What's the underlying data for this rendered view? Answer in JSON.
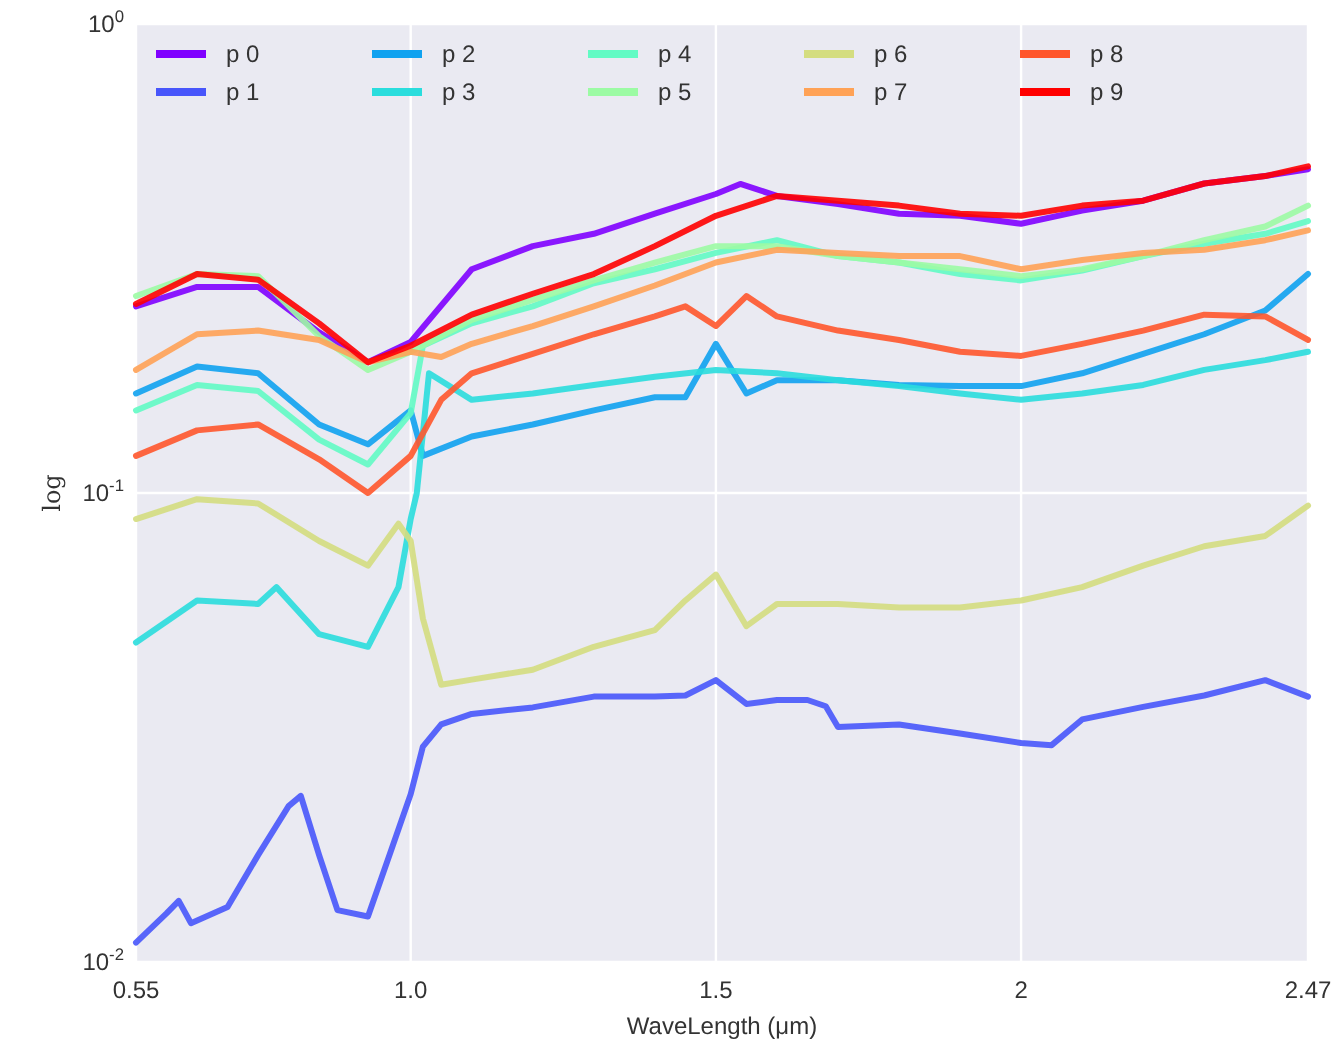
{
  "chart_data": {
    "type": "line",
    "xlabel": "WaveLength (μm)",
    "ylabel": "log",
    "log": "y",
    "grid": true,
    "legend": "top left",
    "line_style": "solid",
    "marker": "none",
    "xlim": [
      0.55,
      2.47
    ],
    "xticks": [
      {
        "value": 0.55,
        "label": "0.55"
      },
      {
        "value": 1,
        "label": "1.0"
      },
      1.5,
      2,
      2.47
    ],
    "ylim": [
      0.01,
      1
    ],
    "yticks": [
      {
        "value": 0.01,
        "label": "10$^{-2}$"
      },
      {
        "value": 0.1,
        "label": "10$^{-1}$"
      },
      {
        "value": 1,
        "label": "10$^{0}$"
      }
    ],
    "series": [
      {
        "name": "p 0",
        "color": "#8000ff",
        "x": [
          0.55,
          0.65,
          0.75,
          0.85,
          0.93,
          1.0,
          1.1,
          1.2,
          1.3,
          1.4,
          1.5,
          1.54,
          1.6,
          1.7,
          1.8,
          1.9,
          2.0,
          2.1,
          2.2,
          2.3,
          2.4,
          2.47
        ],
        "values": [
          0.25,
          0.275,
          0.275,
          0.22,
          0.19,
          0.21,
          0.3,
          0.336,
          0.357,
          0.394,
          0.434,
          0.456,
          0.43,
          0.413,
          0.394,
          0.39,
          0.375,
          0.4,
          0.42,
          0.457,
          0.474,
          0.49
        ]
      },
      {
        "name": "p 1",
        "color": "#4856fb",
        "x": [
          0.55,
          0.6,
          0.62,
          0.64,
          0.7,
          0.75,
          0.8,
          0.82,
          0.85,
          0.88,
          0.93,
          0.97,
          1.0,
          1.02,
          1.05,
          1.1,
          1.2,
          1.3,
          1.4,
          1.45,
          1.5,
          1.55,
          1.6,
          1.65,
          1.68,
          1.7,
          1.8,
          1.9,
          2.0,
          2.05,
          2.1,
          2.2,
          2.3,
          2.4,
          2.47
        ],
        "values": [
          0.011,
          0.0127,
          0.0135,
          0.0121,
          0.0131,
          0.0169,
          0.0215,
          0.0226,
          0.0169,
          0.0129,
          0.0125,
          0.0176,
          0.0228,
          0.0288,
          0.0321,
          0.0338,
          0.0349,
          0.0368,
          0.0368,
          0.037,
          0.0399,
          0.0355,
          0.0362,
          0.0362,
          0.0351,
          0.0317,
          0.0321,
          0.0307,
          0.0293,
          0.029,
          0.0329,
          0.035,
          0.037,
          0.0399,
          0.0368
        ]
      },
      {
        "name": "p 2",
        "color": "#10a2f0",
        "x": [
          0.55,
          0.65,
          0.75,
          0.85,
          0.93,
          1.0,
          1.02,
          1.1,
          1.2,
          1.3,
          1.4,
          1.45,
          1.5,
          1.55,
          1.6,
          1.7,
          1.8,
          1.9,
          2.0,
          2.1,
          2.2,
          2.3,
          2.4,
          2.47
        ],
        "values": [
          0.163,
          0.186,
          0.18,
          0.14,
          0.127,
          0.15,
          0.12,
          0.132,
          0.14,
          0.15,
          0.16,
          0.16,
          0.208,
          0.163,
          0.174,
          0.174,
          0.17,
          0.169,
          0.169,
          0.18,
          0.198,
          0.218,
          0.245,
          0.293
        ]
      },
      {
        "name": "p 3",
        "color": "#2adddd",
        "x": [
          0.55,
          0.65,
          0.75,
          0.78,
          0.85,
          0.93,
          0.98,
          1.0,
          1.01,
          1.03,
          1.1,
          1.2,
          1.3,
          1.4,
          1.5,
          1.6,
          1.7,
          1.8,
          1.9,
          2.0,
          2.1,
          2.2,
          2.3,
          2.4,
          2.47
        ],
        "values": [
          0.048,
          0.059,
          0.058,
          0.063,
          0.05,
          0.047,
          0.063,
          0.088,
          0.1,
          0.18,
          0.158,
          0.163,
          0.17,
          0.177,
          0.183,
          0.18,
          0.174,
          0.169,
          0.163,
          0.158,
          0.163,
          0.17,
          0.183,
          0.192,
          0.2
        ]
      },
      {
        "name": "p 4",
        "color": "#62fbc4",
        "x": [
          0.55,
          0.65,
          0.75,
          0.85,
          0.93,
          1.0,
          1.02,
          1.1,
          1.2,
          1.3,
          1.4,
          1.5,
          1.6,
          1.7,
          1.8,
          1.9,
          2.0,
          2.1,
          2.2,
          2.3,
          2.4,
          2.47
        ],
        "values": [
          0.15,
          0.17,
          0.165,
          0.13,
          0.115,
          0.148,
          0.206,
          0.23,
          0.25,
          0.28,
          0.3,
          0.325,
          0.346,
          0.32,
          0.31,
          0.293,
          0.284,
          0.298,
          0.32,
          0.34,
          0.357,
          0.38
        ]
      },
      {
        "name": "p 5",
        "color": "#9cfba4",
        "x": [
          0.55,
          0.65,
          0.75,
          0.85,
          0.93,
          1.0,
          1.1,
          1.2,
          1.3,
          1.4,
          1.5,
          1.6,
          1.7,
          1.8,
          1.9,
          2.0,
          2.1,
          2.2,
          2.3,
          2.4,
          2.47
        ],
        "values": [
          0.263,
          0.293,
          0.29,
          0.216,
          0.183,
          0.2,
          0.234,
          0.258,
          0.284,
          0.31,
          0.336,
          0.336,
          0.32,
          0.31,
          0.3,
          0.29,
          0.3,
          0.32,
          0.346,
          0.37,
          0.41
        ]
      },
      {
        "name": "p 6",
        "color": "#d4dd80",
        "x": [
          0.55,
          0.65,
          0.75,
          0.85,
          0.93,
          0.98,
          1.0,
          1.02,
          1.05,
          1.1,
          1.2,
          1.3,
          1.4,
          1.45,
          1.5,
          1.55,
          1.6,
          1.7,
          1.8,
          1.9,
          2.0,
          2.1,
          2.2,
          2.3,
          2.4,
          2.47
        ],
        "values": [
          0.088,
          0.097,
          0.095,
          0.079,
          0.07,
          0.086,
          0.079,
          0.054,
          0.039,
          0.04,
          0.042,
          0.047,
          0.051,
          0.059,
          0.067,
          0.052,
          0.058,
          0.058,
          0.057,
          0.057,
          0.059,
          0.063,
          0.07,
          0.077,
          0.081,
          0.094
        ]
      },
      {
        "name": "p 7",
        "color": "#ffa256",
        "x": [
          0.55,
          0.65,
          0.75,
          0.85,
          0.93,
          1.0,
          1.05,
          1.1,
          1.2,
          1.3,
          1.4,
          1.5,
          1.6,
          1.7,
          1.8,
          1.9,
          2.0,
          2.1,
          2.2,
          2.3,
          2.4,
          2.47
        ],
        "values": [
          0.183,
          0.218,
          0.222,
          0.212,
          0.19,
          0.2,
          0.195,
          0.208,
          0.227,
          0.25,
          0.277,
          0.31,
          0.33,
          0.325,
          0.32,
          0.32,
          0.3,
          0.314,
          0.325,
          0.33,
          0.346,
          0.363
        ]
      },
      {
        "name": "p 8",
        "color": "#ff562c",
        "x": [
          0.55,
          0.65,
          0.75,
          0.85,
          0.93,
          1.0,
          1.05,
          1.1,
          1.2,
          1.3,
          1.4,
          1.45,
          1.5,
          1.55,
          1.6,
          1.7,
          1.8,
          1.9,
          2.0,
          2.1,
          2.2,
          2.3,
          2.4,
          2.47
        ],
        "values": [
          0.12,
          0.136,
          0.14,
          0.118,
          0.1,
          0.12,
          0.158,
          0.18,
          0.198,
          0.218,
          0.238,
          0.25,
          0.227,
          0.263,
          0.238,
          0.222,
          0.212,
          0.2,
          0.196,
          0.208,
          0.222,
          0.24,
          0.238,
          0.212
        ]
      },
      {
        "name": "p 9",
        "color": "#ff0000",
        "x": [
          0.55,
          0.65,
          0.75,
          0.85,
          0.93,
          1.0,
          1.1,
          1.2,
          1.3,
          1.4,
          1.5,
          1.6,
          1.7,
          1.8,
          1.9,
          2.0,
          2.1,
          2.2,
          2.3,
          2.4,
          2.47
        ],
        "values": [
          0.253,
          0.293,
          0.285,
          0.23,
          0.19,
          0.206,
          0.24,
          0.266,
          0.293,
          0.336,
          0.39,
          0.43,
          0.42,
          0.41,
          0.394,
          0.39,
          0.41,
          0.42,
          0.457,
          0.474,
          0.497
        ]
      }
    ]
  }
}
